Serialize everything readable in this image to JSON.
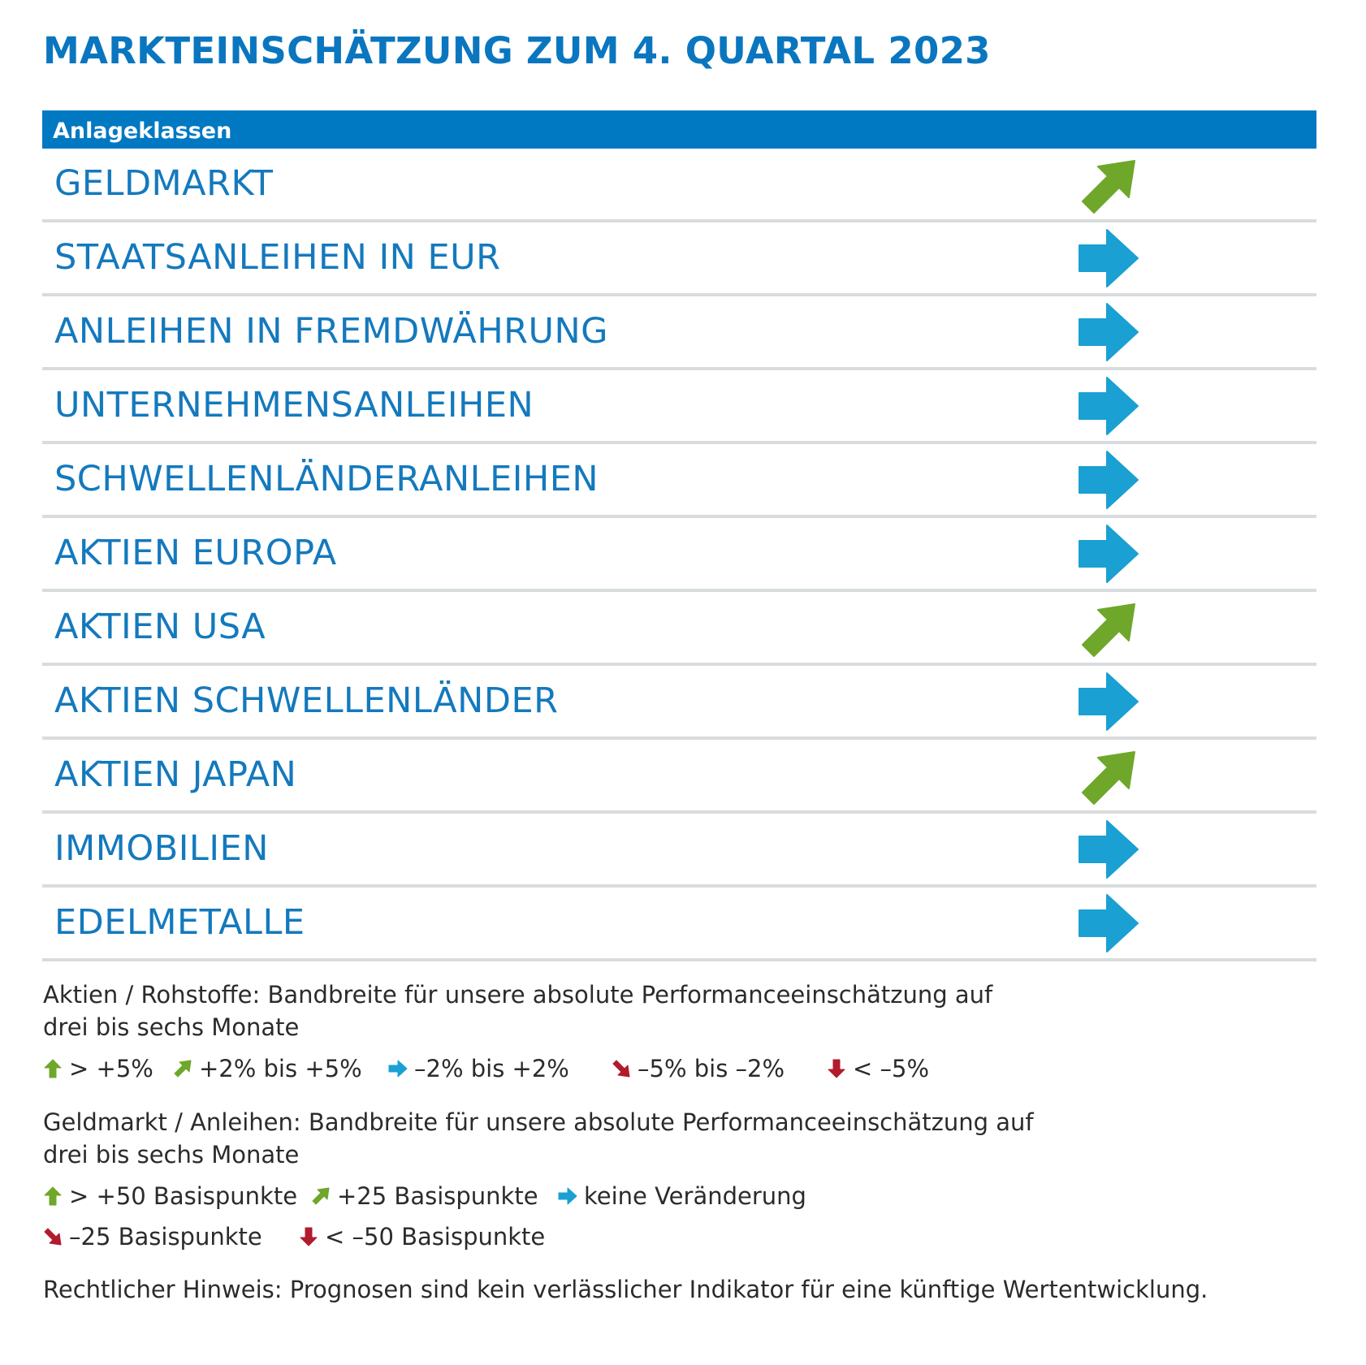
{
  "title": "MARKTEINSCHÄTZUNG ZUM 4. QUARTAL 2023",
  "table": {
    "header": "Anlageklassen",
    "rows": [
      {
        "label": "GELDMARKT",
        "trend": "up-right",
        "icon": "arrow-up-right-icon"
      },
      {
        "label": "STAATSANLEIHEN IN EUR",
        "trend": "right",
        "icon": "arrow-right-icon"
      },
      {
        "label": "ANLEIHEN IN FREMDWÄHRUNG",
        "trend": "right",
        "icon": "arrow-right-icon"
      },
      {
        "label": "UNTERNEHMENSANLEIHEN",
        "trend": "right",
        "icon": "arrow-right-icon"
      },
      {
        "label": "SCHWELLENLÄNDERANLEIHEN",
        "trend": "right",
        "icon": "arrow-right-icon"
      },
      {
        "label": "AKTIEN EUROPA",
        "trend": "right",
        "icon": "arrow-right-icon"
      },
      {
        "label": "AKTIEN USA",
        "trend": "up-right",
        "icon": "arrow-up-right-icon"
      },
      {
        "label": "AKTIEN SCHWELLENLÄNDER",
        "trend": "right",
        "icon": "arrow-right-icon"
      },
      {
        "label": "AKTIEN JAPAN",
        "trend": "up-right",
        "icon": "arrow-up-right-icon"
      },
      {
        "label": "IMMOBILIEN",
        "trend": "right",
        "icon": "arrow-right-icon"
      },
      {
        "label": "EDELMETALLE",
        "trend": "right",
        "icon": "arrow-right-icon"
      }
    ]
  },
  "notes": {
    "aktien": {
      "line1": "Aktien / Rohstoffe: Bandbreite für unsere absolute Performanceeinschätzung auf",
      "line2": "drei bis sechs Monate",
      "legend": [
        {
          "label": "> +5%",
          "trend": "up",
          "icon": "arrow-up-icon"
        },
        {
          "label": "+2% bis +5%",
          "trend": "up-right",
          "icon": "arrow-up-right-icon"
        },
        {
          "label": "–2% bis +2%",
          "trend": "right",
          "icon": "arrow-right-icon"
        },
        {
          "label": "–5% bis –2%",
          "trend": "down-right",
          "icon": "arrow-down-right-icon"
        },
        {
          "label": "< –5%",
          "trend": "down",
          "icon": "arrow-down-icon"
        }
      ]
    },
    "geldmarkt": {
      "line1": "Geldmarkt / Anleihen: Bandbreite für unsere absolute Performanceeinschätzung auf",
      "line2": "drei bis sechs Monate",
      "legend_row1": [
        {
          "label": "> +50 Basispunkte",
          "trend": "up",
          "icon": "arrow-up-icon"
        },
        {
          "label": "+25 Basispunkte",
          "trend": "up-right",
          "icon": "arrow-up-right-icon"
        },
        {
          "label": "keine Veränderung",
          "trend": "right",
          "icon": "arrow-right-icon"
        }
      ],
      "legend_row2": [
        {
          "label": "–25 Basispunkte",
          "trend": "down-right",
          "icon": "arrow-down-right-icon"
        },
        {
          "label": "< –50 Basispunkte",
          "trend": "down",
          "icon": "arrow-down-icon"
        }
      ]
    },
    "disclaimer": "Rechtlicher Hinweis: Prognosen sind kein verlässlicher Indikator für eine künftige Wertentwicklung."
  },
  "colors": {
    "brand_blue": "#0079c2",
    "title_blue": "#0a76bf",
    "up": "#6fa72b",
    "right": "#1aa0d2",
    "down": "#b01c2e",
    "divider": "#d9dcde"
  }
}
